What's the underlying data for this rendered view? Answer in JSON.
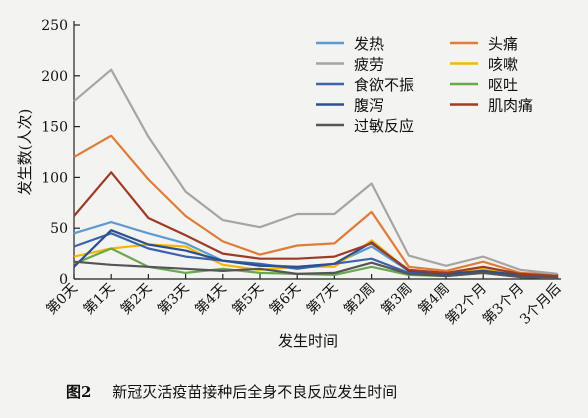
{
  "caption": {
    "number": "图2",
    "text": "新冠灭活疫苗接种后全身不良反应发生时间"
  },
  "chart_data": {
    "type": "line",
    "xlabel": "发生时间",
    "ylabel": "发生数(人次)",
    "ylim": [
      0,
      250
    ],
    "yticks": [
      0,
      50,
      100,
      150,
      200,
      250
    ],
    "grid": false,
    "legend_position": "top-right",
    "categories": [
      "第0天",
      "第1天",
      "第2天",
      "第3天",
      "第4天",
      "第5天",
      "第6天",
      "第7天",
      "第2周",
      "第3周",
      "第4周",
      "第2个月",
      "第3个月",
      "3个月后"
    ],
    "series": [
      {
        "name": "发热",
        "color": "#5b9bd5",
        "values": [
          45,
          56,
          45,
          35,
          18,
          14,
          12,
          15,
          32,
          8,
          5,
          8,
          3,
          2
        ]
      },
      {
        "name": "头痛",
        "color": "#e07b39",
        "values": [
          120,
          141,
          98,
          62,
          37,
          24,
          33,
          35,
          66,
          12,
          8,
          17,
          6,
          4
        ]
      },
      {
        "name": "疲劳",
        "color": "#a5a5a5",
        "values": [
          175,
          206,
          140,
          86,
          58,
          51,
          64,
          64,
          94,
          23,
          13,
          22,
          9,
          5
        ]
      },
      {
        "name": "咳嗽",
        "color": "#f5b800",
        "values": [
          22,
          30,
          34,
          32,
          14,
          9,
          12,
          12,
          38,
          8,
          5,
          10,
          4,
          3
        ]
      },
      {
        "name": "食欲不振",
        "color": "#3b64ad",
        "values": [
          32,
          45,
          30,
          22,
          18,
          15,
          10,
          15,
          20,
          6,
          3,
          7,
          2,
          1
        ]
      },
      {
        "name": "呕吐",
        "color": "#6aa84f",
        "values": [
          15,
          30,
          12,
          6,
          10,
          6,
          5,
          4,
          12,
          4,
          3,
          6,
          2,
          1
        ]
      },
      {
        "name": "腹泻",
        "color": "#2e4f8f",
        "values": [
          12,
          48,
          34,
          28,
          18,
          13,
          12,
          15,
          36,
          8,
          5,
          8,
          4,
          2
        ]
      },
      {
        "name": "肌肉痛",
        "color": "#9e3b26",
        "values": [
          62,
          105,
          60,
          43,
          25,
          20,
          20,
          22,
          35,
          9,
          6,
          12,
          5,
          3
        ]
      },
      {
        "name": "过敏反应",
        "color": "#555555",
        "values": [
          17,
          14,
          12,
          10,
          8,
          10,
          5,
          6,
          16,
          5,
          3,
          6,
          2,
          1
        ]
      }
    ]
  }
}
